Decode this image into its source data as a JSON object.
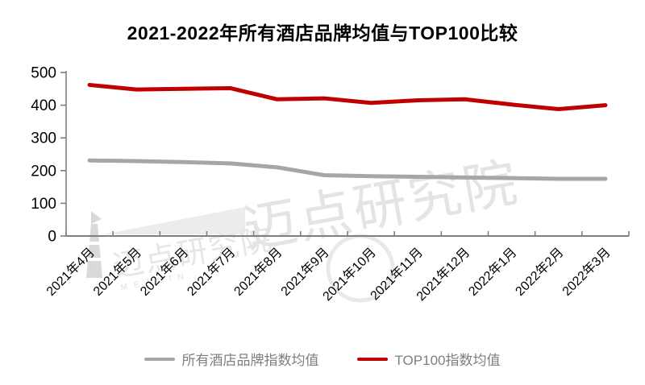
{
  "watermark": {
    "text": "迈点研究院",
    "sub": "MEADIN"
  },
  "colors": {
    "axis": "#7f7f7f",
    "title_text": "#000000",
    "legend_text": "#7f7f7f",
    "watermark_gray": "#e4e4e4",
    "all_hotels_line": "#a6a6a6",
    "top100_line": "#c00000"
  },
  "chart_data": {
    "type": "line",
    "title": "2021-2022年所有酒店品牌均值与TOP100比较",
    "xlabel": "",
    "ylabel": "",
    "categories": [
      "2021年4月",
      "2021年5月",
      "2021年6月",
      "2021年7月",
      "2021年8月",
      "2021年9月",
      "2021年10月",
      "2021年11月",
      "2021年12月",
      "2022年1月",
      "2022年2月",
      "2022年3月"
    ],
    "series": [
      {
        "name": "所有酒店品牌指数均值",
        "color": "#a6a6a6",
        "values": [
          231,
          229,
          226,
          222,
          210,
          186,
          183,
          181,
          179,
          177,
          175,
          175
        ]
      },
      {
        "name": "TOP100指数均值",
        "color": "#c00000",
        "values": [
          462,
          448,
          450,
          452,
          418,
          421,
          407,
          415,
          418,
          402,
          388,
          400
        ]
      }
    ],
    "ylim": [
      0,
      500
    ],
    "ytick_interval": 100,
    "yticks": [
      0,
      100,
      200,
      300,
      400,
      500
    ],
    "grid": false,
    "legend_position": "bottom",
    "x_label_rotation_deg": -45
  }
}
